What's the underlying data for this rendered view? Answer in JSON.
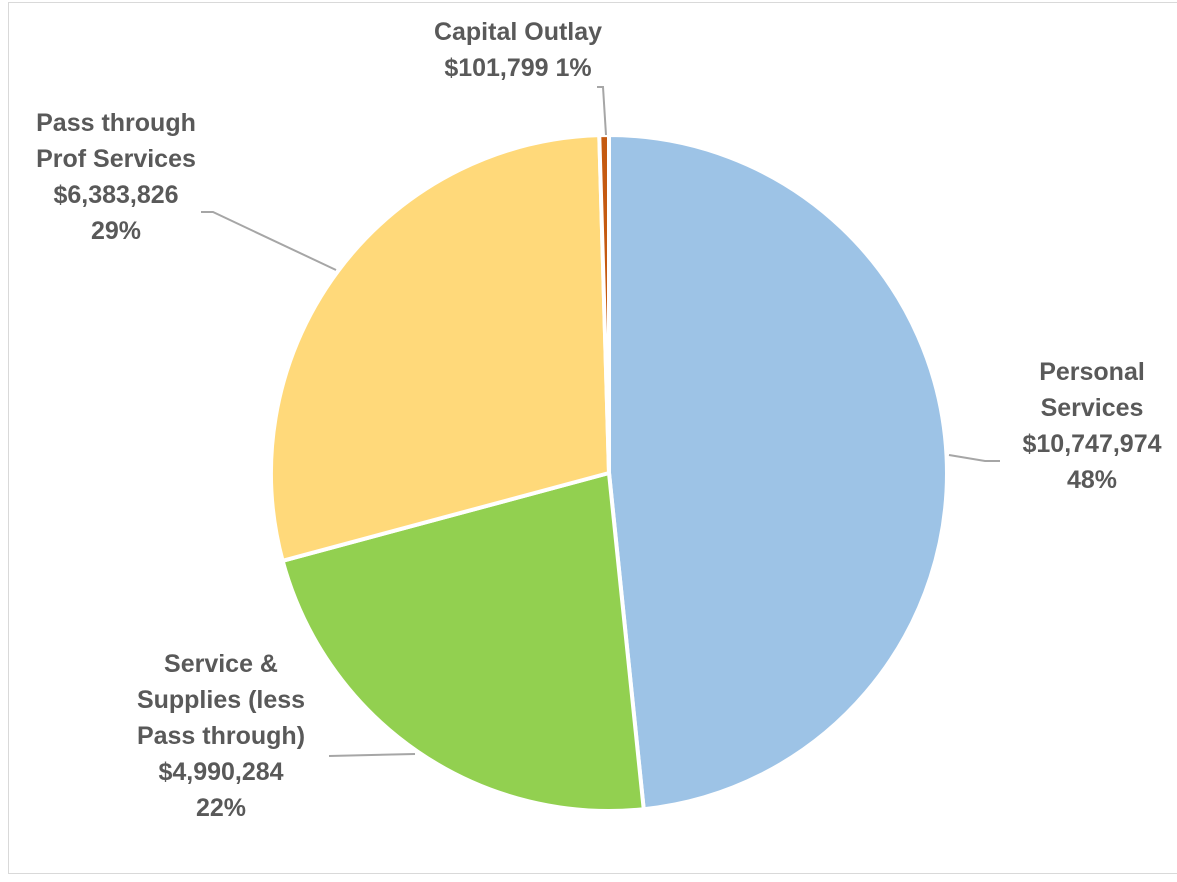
{
  "chart_data": {
    "type": "pie",
    "title": "",
    "start_angle_deg": 0,
    "direction": "clockwise",
    "slices": [
      {
        "name": "Personal Services",
        "value": 10747974,
        "value_label": "$10,747,974",
        "percent_label": "48%",
        "label_lines": [
          "Personal",
          "Services",
          "$10,747,974",
          "48%"
        ],
        "color": "#9DC3E6"
      },
      {
        "name": "Service & Supplies (less Pass through)",
        "value": 4990284,
        "value_label": "$4,990,284",
        "percent_label": "22%",
        "label_lines": [
          "Service &",
          "Supplies (less",
          "Pass through)",
          "$4,990,284",
          "22%"
        ],
        "color": "#92D050"
      },
      {
        "name": "Pass through Prof Services",
        "value": 6383826,
        "value_label": "$6,383,826",
        "percent_label": "29%",
        "label_lines": [
          "Pass through",
          "Prof Services",
          "$6,383,826",
          "29%"
        ],
        "color": "#FFD97A"
      },
      {
        "name": "Capital Outlay",
        "value": 101799,
        "value_label": "$101,799",
        "percent_label": "1%",
        "label_lines": [
          "Capital Outlay",
          "$101,799  1%"
        ],
        "color": "#C55A11"
      }
    ],
    "legend": "none",
    "label_color": "#595959",
    "leader_line_color": "#A6A6A6"
  }
}
